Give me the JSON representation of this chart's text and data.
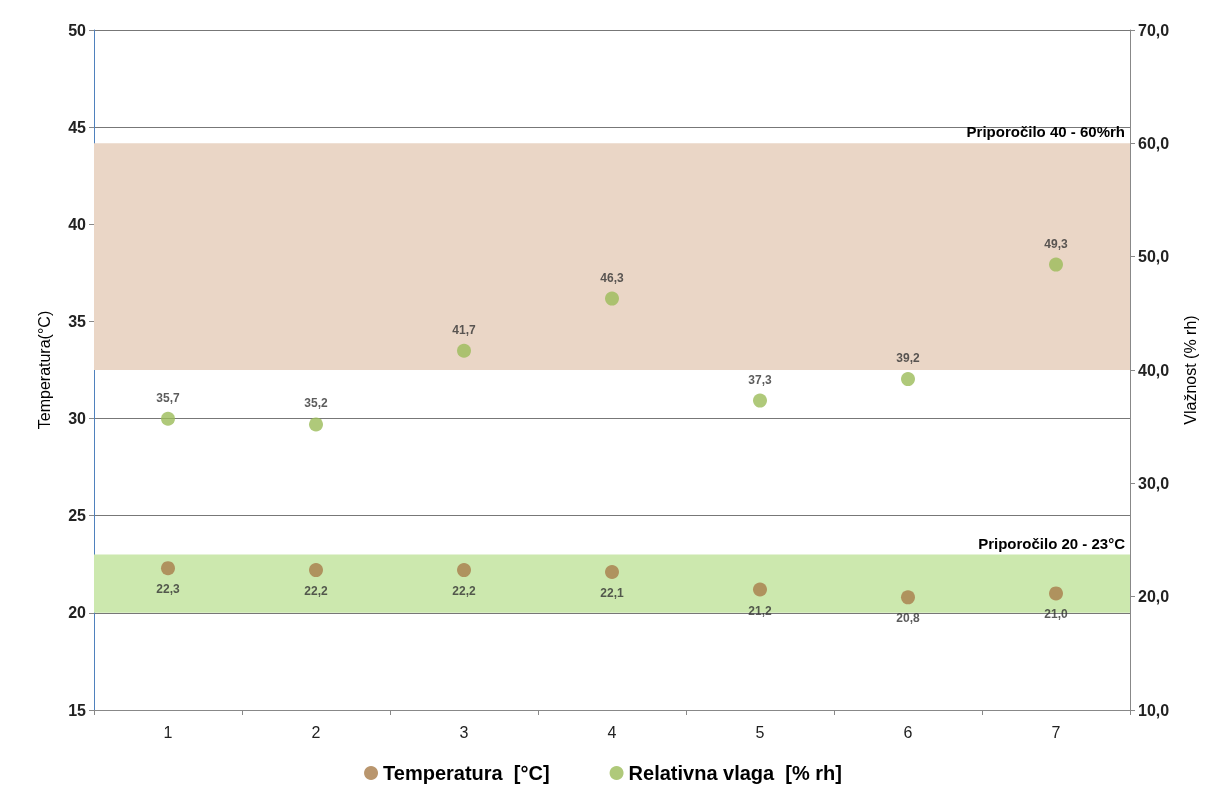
{
  "chart_data": {
    "type": "scatter",
    "categories": [
      "1",
      "2",
      "3",
      "4",
      "5",
      "6",
      "7"
    ],
    "ylabel": "Temperatura(°C)",
    "y2label": "Vlažnost (% rh)",
    "ylim": [
      15,
      50
    ],
    "yticks": [
      15,
      20,
      25,
      30,
      35,
      40,
      45,
      50
    ],
    "y2lim": [
      10,
      70
    ],
    "y2ticks": [
      {
        "value": 10,
        "label": "10,0"
      },
      {
        "value": 20,
        "label": "20,0"
      },
      {
        "value": 30,
        "label": "30,0"
      },
      {
        "value": 40,
        "label": "40,0"
      },
      {
        "value": 50,
        "label": "50,0"
      },
      {
        "value": 60,
        "label": "60,0"
      },
      {
        "value": 70,
        "label": "70,0"
      }
    ],
    "series": [
      {
        "name": "Temperatura  [°C]",
        "color": "#a87c4a",
        "values": [
          22.3,
          22.2,
          22.2,
          22.1,
          21.2,
          20.8,
          21.0
        ],
        "value_labels": [
          "22,3",
          "22,2",
          "22,2",
          "22,1",
          "21,2",
          "20,8",
          "21,0"
        ]
      },
      {
        "name": "Relativna vlaga  [% rh]",
        "color": "#9bbb59",
        "axis": "y2",
        "values": [
          35.7,
          35.2,
          41.7,
          46.3,
          37.3,
          39.2,
          49.3
        ],
        "value_labels": [
          "35,7",
          "35,2",
          "41,7",
          "46,3",
          "37,3",
          "39,2",
          "49,3"
        ]
      }
    ],
    "bands": [
      {
        "axis": "y2",
        "from": 40,
        "to": 60,
        "label": "Priporočilo 40 - 60%rh",
        "color": "#ead6c6"
      },
      {
        "axis": "y",
        "from": 20,
        "to": 23,
        "label": "Priporočilo 20 - 23°C",
        "color": "#cce8ae"
      }
    ],
    "grid": "y",
    "marker": "circle",
    "legend": "bottom"
  }
}
